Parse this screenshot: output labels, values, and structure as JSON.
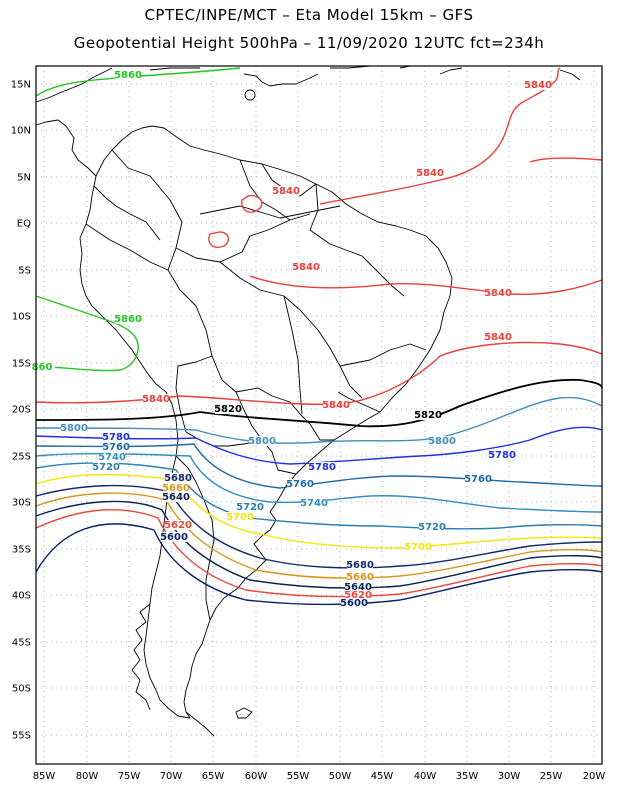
{
  "title": {
    "line1": "CPTEC/INPE/MCT  –   Eta Model 15km  –  GFS",
    "line2": "Geopotential Height 500hPa  –  11/09/2020 12UTC fct=234h"
  },
  "axes": {
    "lat_labels": [
      "15N",
      "10N",
      "5N",
      "EQ",
      "5S",
      "10S",
      "15S",
      "20S",
      "25S",
      "30S",
      "35S",
      "40S",
      "45S",
      "50S",
      "55S"
    ],
    "lon_labels": [
      "85W",
      "80W",
      "75W",
      "70W",
      "65W",
      "60W",
      "55W",
      "50W",
      "45W",
      "40W",
      "35W",
      "30W",
      "25W",
      "20W"
    ]
  },
  "contour_colors": {
    "5600": "#0a1f6e",
    "5620": "#e8483a",
    "5640": "#0b2250",
    "5660": "#d8961e",
    "5680": "#152a6a",
    "5700": "#f2e60a",
    "5720": "#2a7fb0",
    "5740": "#2f8fc0",
    "5760": "#1e6aa8",
    "5780": "#1f30e0",
    "5800": "#3f8fb8",
    "5820": "#000000",
    "5840": "#e8403a",
    "5860": "#22c81e"
  },
  "contour_labels": [
    {
      "text": "5860",
      "color": "5860"
    },
    {
      "text": "5860",
      "color": "5860"
    },
    {
      "text": "860",
      "color": "5860"
    },
    {
      "text": "5840",
      "color": "5840"
    },
    {
      "text": "5840",
      "color": "5840"
    },
    {
      "text": "5840",
      "color": "5840"
    },
    {
      "text": "5840",
      "color": "5840"
    },
    {
      "text": "5840",
      "color": "5840"
    },
    {
      "text": "5840",
      "color": "5840"
    },
    {
      "text": "5840",
      "color": "5840"
    },
    {
      "text": "5840",
      "color": "5840"
    },
    {
      "text": "5820",
      "color": "5820"
    },
    {
      "text": "5820",
      "color": "5820"
    },
    {
      "text": "5800",
      "color": "5800"
    },
    {
      "text": "5800",
      "color": "5800"
    },
    {
      "text": "5800",
      "color": "5800"
    },
    {
      "text": "5780",
      "color": "5780"
    },
    {
      "text": "5780",
      "color": "5780"
    },
    {
      "text": "5780",
      "color": "5780"
    },
    {
      "text": "5760",
      "color": "5760"
    },
    {
      "text": "5760",
      "color": "5760"
    },
    {
      "text": "5760",
      "color": "5760"
    },
    {
      "text": "5740",
      "color": "5740"
    },
    {
      "text": "5740",
      "color": "5740"
    },
    {
      "text": "5720",
      "color": "5720"
    },
    {
      "text": "5720",
      "color": "5720"
    },
    {
      "text": "5720",
      "color": "5720"
    },
    {
      "text": "5700",
      "color": "5700"
    },
    {
      "text": "5700",
      "color": "5700"
    },
    {
      "text": "5680",
      "color": "5680"
    },
    {
      "text": "5680",
      "color": "5680"
    },
    {
      "text": "5660",
      "color": "5660"
    },
    {
      "text": "5660",
      "color": "5660"
    },
    {
      "text": "5640",
      "color": "5640"
    },
    {
      "text": "5640",
      "color": "5640"
    },
    {
      "text": "5620",
      "color": "5620"
    },
    {
      "text": "5620",
      "color": "5620"
    },
    {
      "text": "5600",
      "color": "5600"
    },
    {
      "text": "5600",
      "color": "5600"
    }
  ]
}
